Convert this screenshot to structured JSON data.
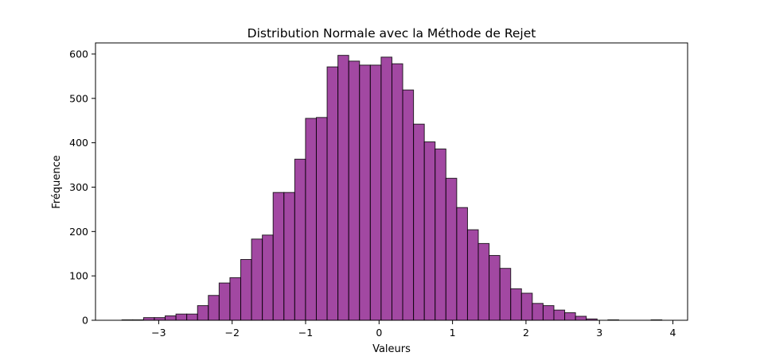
{
  "chart_data": {
    "type": "bar",
    "title": "Distribution Normale avec la Méthode de Rejet",
    "xlabel": "Valeurs",
    "ylabel": "Fréquence",
    "xlim": [
      -3.86,
      4.2
    ],
    "ylim": [
      0,
      625
    ],
    "x_ticks": [
      -3,
      -2,
      -1,
      0,
      1,
      2,
      3,
      4
    ],
    "x_tick_labels": [
      "−3",
      "−2",
      "−1",
      "0",
      "1",
      "2",
      "3",
      "4"
    ],
    "y_ticks": [
      0,
      100,
      200,
      300,
      400,
      500,
      600
    ],
    "y_tick_labels": [
      "0",
      "100",
      "200",
      "300",
      "400",
      "500",
      "600"
    ],
    "bin_start": -3.5,
    "bin_width": 0.147,
    "values": [
      1,
      1,
      6,
      6,
      10,
      14,
      14,
      33,
      56,
      84,
      96,
      137,
      183,
      192,
      288,
      288,
      363,
      455,
      457,
      571,
      597,
      584,
      575,
      575,
      593,
      578,
      519,
      442,
      402,
      386,
      320,
      254,
      204,
      173,
      146,
      117,
      71,
      61,
      38,
      33,
      23,
      17,
      9,
      3,
      0,
      1,
      0,
      0,
      0,
      1
    ],
    "bar_color": "#8B1A8B",
    "bar_opacity": 0.8,
    "edge_color": "#000000",
    "grid": false
  }
}
